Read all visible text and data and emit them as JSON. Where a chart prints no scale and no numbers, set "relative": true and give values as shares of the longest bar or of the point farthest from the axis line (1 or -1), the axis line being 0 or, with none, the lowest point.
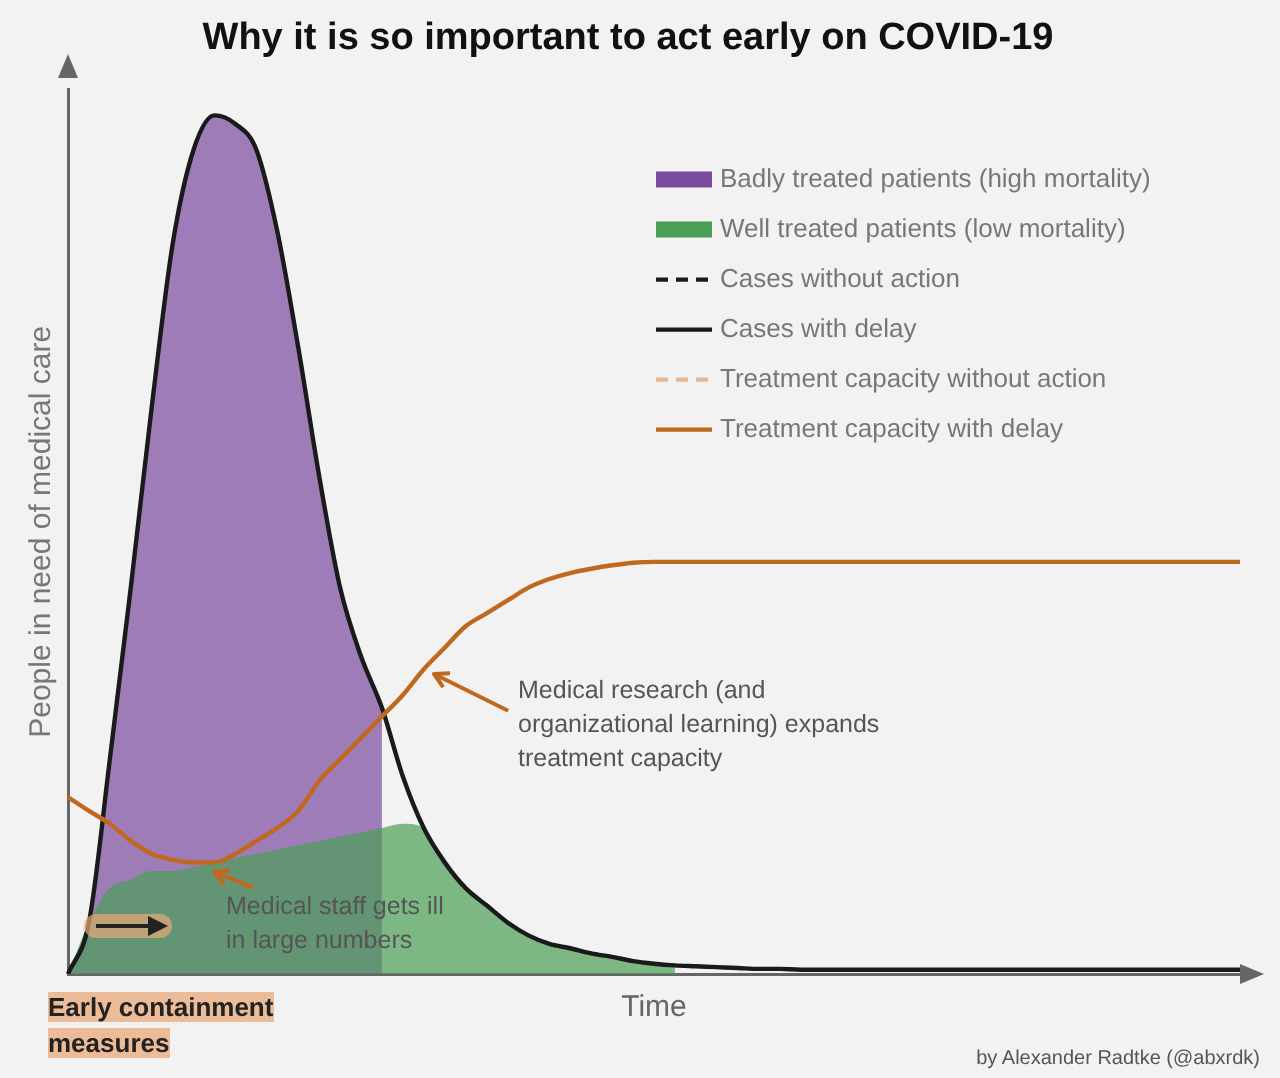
{
  "chart_data": {
    "type": "area",
    "title": "Why it is so important to act early on COVID-19",
    "xlabel": "Time",
    "ylabel": "People in need of medical care",
    "relative": true,
    "legend": "top right",
    "grid": false,
    "categories": [
      null,
      null,
      null,
      null,
      null,
      null,
      null,
      null,
      null,
      null,
      null,
      null,
      null,
      null,
      null,
      null,
      null,
      null,
      null,
      null,
      null,
      null,
      null,
      null,
      null,
      null,
      null,
      null,
      null,
      null,
      null,
      null,
      null,
      null,
      null,
      null,
      null,
      null,
      null,
      null,
      null,
      null,
      null,
      null,
      null,
      null,
      null,
      null,
      null,
      null,
      null,
      null,
      null,
      null,
      null,
      null,
      null
    ],
    "series": [
      {
        "name": "Badly treated patients (high mortality)",
        "color": "#7a4a9e",
        "values": [
          0,
          0.06,
          0.25,
          0.45,
          0.66,
          0.85,
          0.96,
          1,
          0.99,
          0.96,
          0.865,
          0.73,
          0.58,
          0.45,
          0.37,
          0.31,
          null,
          null,
          null,
          null,
          null,
          null,
          null,
          null,
          null,
          null,
          null,
          null,
          null,
          null,
          null,
          null,
          null,
          null,
          null,
          null,
          null,
          null,
          null,
          null,
          null,
          null,
          null,
          null,
          null,
          null,
          null,
          null,
          null,
          null,
          null,
          null,
          null,
          null,
          null,
          null,
          null
        ]
      },
      {
        "name": "Well treated patients (low mortality)",
        "color": "#4a9e55",
        "values": [
          0,
          0.06,
          0.1,
          0.11,
          0.12,
          0.12,
          0.125,
          0.13,
          0.135,
          0.14,
          0.145,
          0.15,
          0.155,
          0.16,
          0.165,
          0.17,
          0.175,
          0.17,
          0.13,
          0.1,
          0.08,
          0.06,
          0.045,
          0.035,
          0.03,
          0.024,
          0.02,
          0.015,
          0.012,
          0.01,
          null,
          null,
          null,
          null,
          null,
          null,
          null,
          null,
          null,
          null,
          null,
          null,
          null,
          null,
          null,
          null,
          null,
          null,
          null,
          null,
          null,
          null,
          null,
          null,
          null,
          null,
          null
        ]
      },
      {
        "name": "Cases without action",
        "type": "line",
        "color": "#1a1a1a",
        "line_style": "dashed",
        "values": [
          null,
          null,
          null,
          null,
          null,
          null,
          null,
          null,
          null,
          null,
          null,
          null,
          null,
          null,
          null,
          null,
          null,
          null,
          null,
          null,
          null,
          null,
          null,
          null,
          null,
          null,
          null,
          null,
          null,
          null,
          null,
          null,
          null,
          null,
          null,
          null,
          null,
          null,
          null,
          null,
          null,
          null,
          null,
          null,
          null,
          null,
          null,
          null,
          null,
          null,
          null,
          null,
          null,
          null,
          null,
          null,
          null
        ]
      },
      {
        "name": "Cases with delay",
        "type": "line",
        "color": "#1a1a1a",
        "line_style": "solid",
        "values": [
          0,
          0.06,
          0.25,
          0.45,
          0.66,
          0.85,
          0.96,
          1,
          0.99,
          0.96,
          0.865,
          0.73,
          0.58,
          0.45,
          0.37,
          0.31,
          0.23,
          0.17,
          0.13,
          0.1,
          0.08,
          0.06,
          0.045,
          0.035,
          0.03,
          0.024,
          0.02,
          0.015,
          0.012,
          0.01,
          0.009,
          0.008,
          0.007,
          0.006,
          0.006,
          0.005,
          0.005,
          0.005,
          0.005,
          0.005,
          0.005,
          0.005,
          0.005,
          0.005,
          0.005,
          0.005,
          0.005,
          0.005,
          0.005,
          0.005,
          0.005,
          0.005,
          0.005,
          0.005,
          0.005,
          0.005,
          0.005
        ]
      },
      {
        "name": "Treatment capacity without action",
        "type": "line",
        "color": "#e2b99a",
        "line_style": "dashed",
        "values": [
          null,
          null,
          null,
          null,
          null,
          null,
          null,
          null,
          null,
          null,
          null,
          null,
          null,
          null,
          null,
          null,
          null,
          null,
          null,
          null,
          null,
          null,
          null,
          null,
          null,
          null,
          null,
          null,
          null,
          null,
          null,
          null,
          null,
          null,
          null,
          null,
          null,
          null,
          null,
          null,
          null,
          null,
          null,
          null,
          null,
          null,
          null,
          null,
          null,
          null,
          null,
          null,
          null,
          null,
          null,
          null,
          null
        ]
      },
      {
        "name": "Treatment capacity with delay",
        "type": "line",
        "color": "#c0691e",
        "line_style": "solid",
        "values": [
          0.206,
          0.19,
          0.175,
          0.155,
          0.14,
          0.133,
          0.13,
          0.13,
          0.14,
          0.155,
          0.17,
          0.19,
          0.225,
          0.25,
          0.275,
          0.3,
          0.325,
          0.355,
          0.38,
          0.405,
          0.42,
          0.435,
          0.45,
          0.46,
          0.467,
          0.472,
          0.476,
          0.479,
          0.48,
          0.48,
          0.48,
          0.48,
          0.48,
          0.48,
          0.48,
          0.48,
          0.48,
          0.48,
          0.48,
          0.48,
          0.48,
          0.48,
          0.48,
          0.48,
          0.48,
          0.48,
          0.48,
          0.48,
          0.48,
          0.48,
          0.48,
          0.48,
          0.48,
          0.48,
          0.48,
          0.48,
          0.48
        ]
      }
    ],
    "annotations": [
      "Medical research (and organizational learning) expands treatment capacity",
      "Medical staff gets ill in large numbers",
      "Early containment measures",
      "by Alexander Radtke (@abxrdk)"
    ]
  }
}
